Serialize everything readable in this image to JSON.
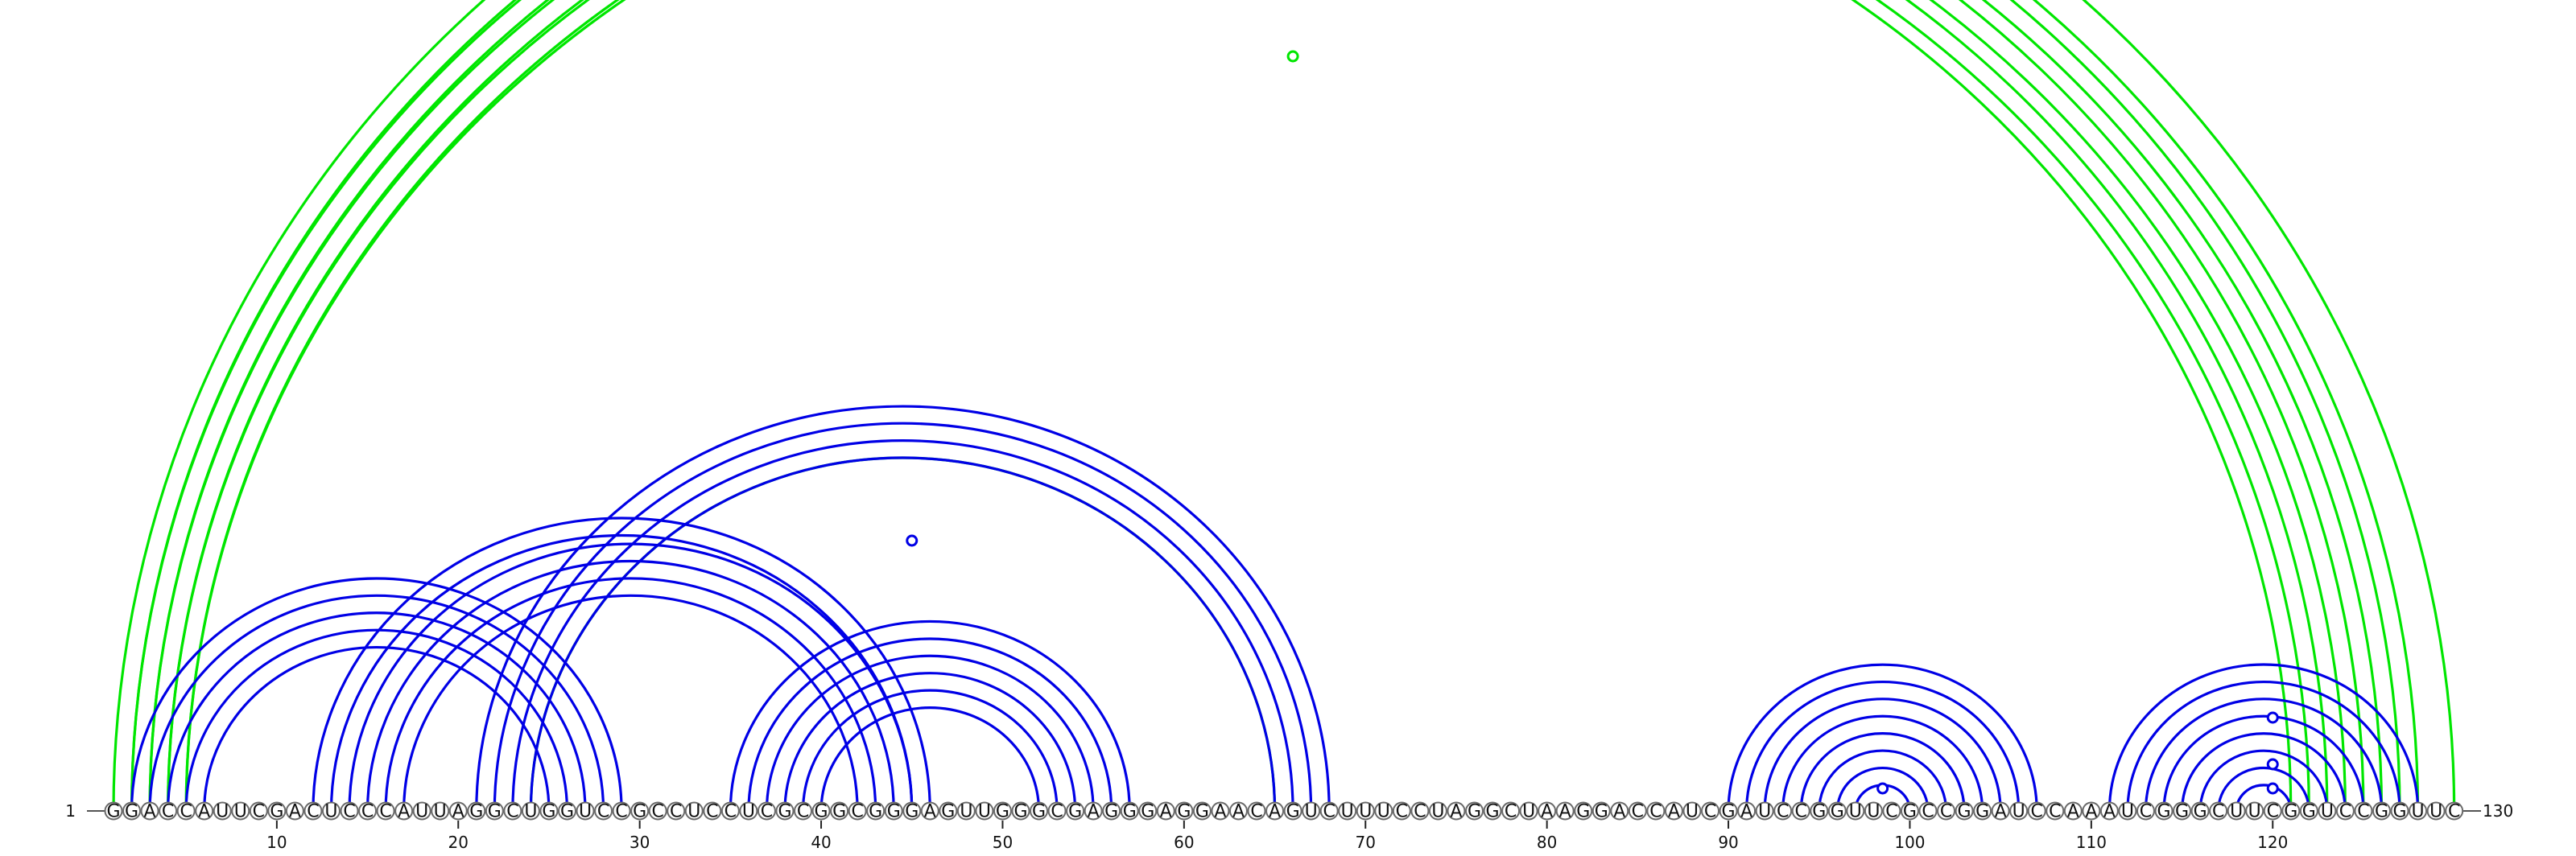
{
  "sequence": "GGACCAUUCGACUCCCAUUAGGCUGGUCCGCCUCCUCGCGGCGGGAGUUGGGCGAGGGAGGAACAGUCUUUCCUAGGCUAAGGACCAUCGAUCCGGUUCGCCGGAUCCAAAUCGGGCUUCGGUCCGGUUC",
  "start_label": "1",
  "end_label": "130",
  "ticks": [
    10,
    20,
    30,
    40,
    50,
    60,
    70,
    80,
    90,
    100,
    110,
    120
  ],
  "colors": {
    "blue": "#0000e6",
    "green": "#00e600"
  },
  "arcs": [
    {
      "i": 1,
      "j": 130,
      "color": "green"
    },
    {
      "i": 2,
      "j": 128,
      "color": "green"
    },
    {
      "i": 2,
      "j": 127,
      "color": "green"
    },
    {
      "i": 3,
      "j": 126,
      "color": "green"
    },
    {
      "i": 3,
      "j": 125,
      "color": "green"
    },
    {
      "i": 4,
      "j": 124,
      "color": "green"
    },
    {
      "i": 4,
      "j": 123,
      "color": "green"
    },
    {
      "i": 5,
      "j": 122,
      "color": "green"
    },
    {
      "i": 5,
      "j": 121,
      "color": "green"
    },
    {
      "i": 24,
      "j": 65,
      "color": "green"
    },
    {
      "i": 2,
      "j": 29,
      "color": "blue"
    },
    {
      "i": 3,
      "j": 28,
      "color": "blue"
    },
    {
      "i": 4,
      "j": 27,
      "color": "blue"
    },
    {
      "i": 5,
      "j": 26,
      "color": "blue"
    },
    {
      "i": 6,
      "j": 25,
      "color": "blue"
    },
    {
      "i": 12,
      "j": 46,
      "color": "blue"
    },
    {
      "i": 13,
      "j": 45,
      "color": "blue"
    },
    {
      "i": 14,
      "j": 45,
      "color": "blue"
    },
    {
      "i": 15,
      "j": 44,
      "color": "blue"
    },
    {
      "i": 16,
      "j": 43,
      "color": "blue"
    },
    {
      "i": 17,
      "j": 42,
      "color": "blue"
    },
    {
      "i": 21,
      "j": 68,
      "color": "blue"
    },
    {
      "i": 22,
      "j": 67,
      "color": "blue"
    },
    {
      "i": 23,
      "j": 66,
      "color": "blue"
    },
    {
      "i": 24,
      "j": 65,
      "color": "blue"
    },
    {
      "i": 35,
      "j": 57,
      "color": "blue"
    },
    {
      "i": 36,
      "j": 56,
      "color": "blue"
    },
    {
      "i": 37,
      "j": 55,
      "color": "blue"
    },
    {
      "i": 38,
      "j": 54,
      "color": "blue"
    },
    {
      "i": 39,
      "j": 53,
      "color": "blue"
    },
    {
      "i": 40,
      "j": 52,
      "color": "blue"
    },
    {
      "i": 90,
      "j": 107,
      "color": "blue"
    },
    {
      "i": 91,
      "j": 106,
      "color": "blue"
    },
    {
      "i": 92,
      "j": 105,
      "color": "blue"
    },
    {
      "i": 93,
      "j": 104,
      "color": "blue"
    },
    {
      "i": 94,
      "j": 103,
      "color": "blue"
    },
    {
      "i": 95,
      "j": 102,
      "color": "blue"
    },
    {
      "i": 96,
      "j": 101,
      "color": "blue"
    },
    {
      "i": 97,
      "j": 100,
      "color": "blue"
    },
    {
      "i": 111,
      "j": 128,
      "color": "blue"
    },
    {
      "i": 112,
      "j": 127,
      "color": "blue"
    },
    {
      "i": 113,
      "j": 126,
      "color": "blue"
    },
    {
      "i": 114,
      "j": 125,
      "color": "blue"
    },
    {
      "i": 115,
      "j": 124,
      "color": "blue"
    },
    {
      "i": 116,
      "j": 123,
      "color": "blue"
    },
    {
      "i": 117,
      "j": 122,
      "color": "blue"
    },
    {
      "i": 118,
      "j": 121,
      "color": "blue"
    }
  ],
  "markers": [
    {
      "at": 66,
      "color": "green"
    },
    {
      "at": 45,
      "color": "blue"
    },
    {
      "at": 98.5,
      "color": "blue"
    },
    {
      "at": 120,
      "color": "blue"
    },
    {
      "at": 120,
      "color": "blue"
    },
    {
      "at": 120,
      "color": "blue"
    }
  ]
}
